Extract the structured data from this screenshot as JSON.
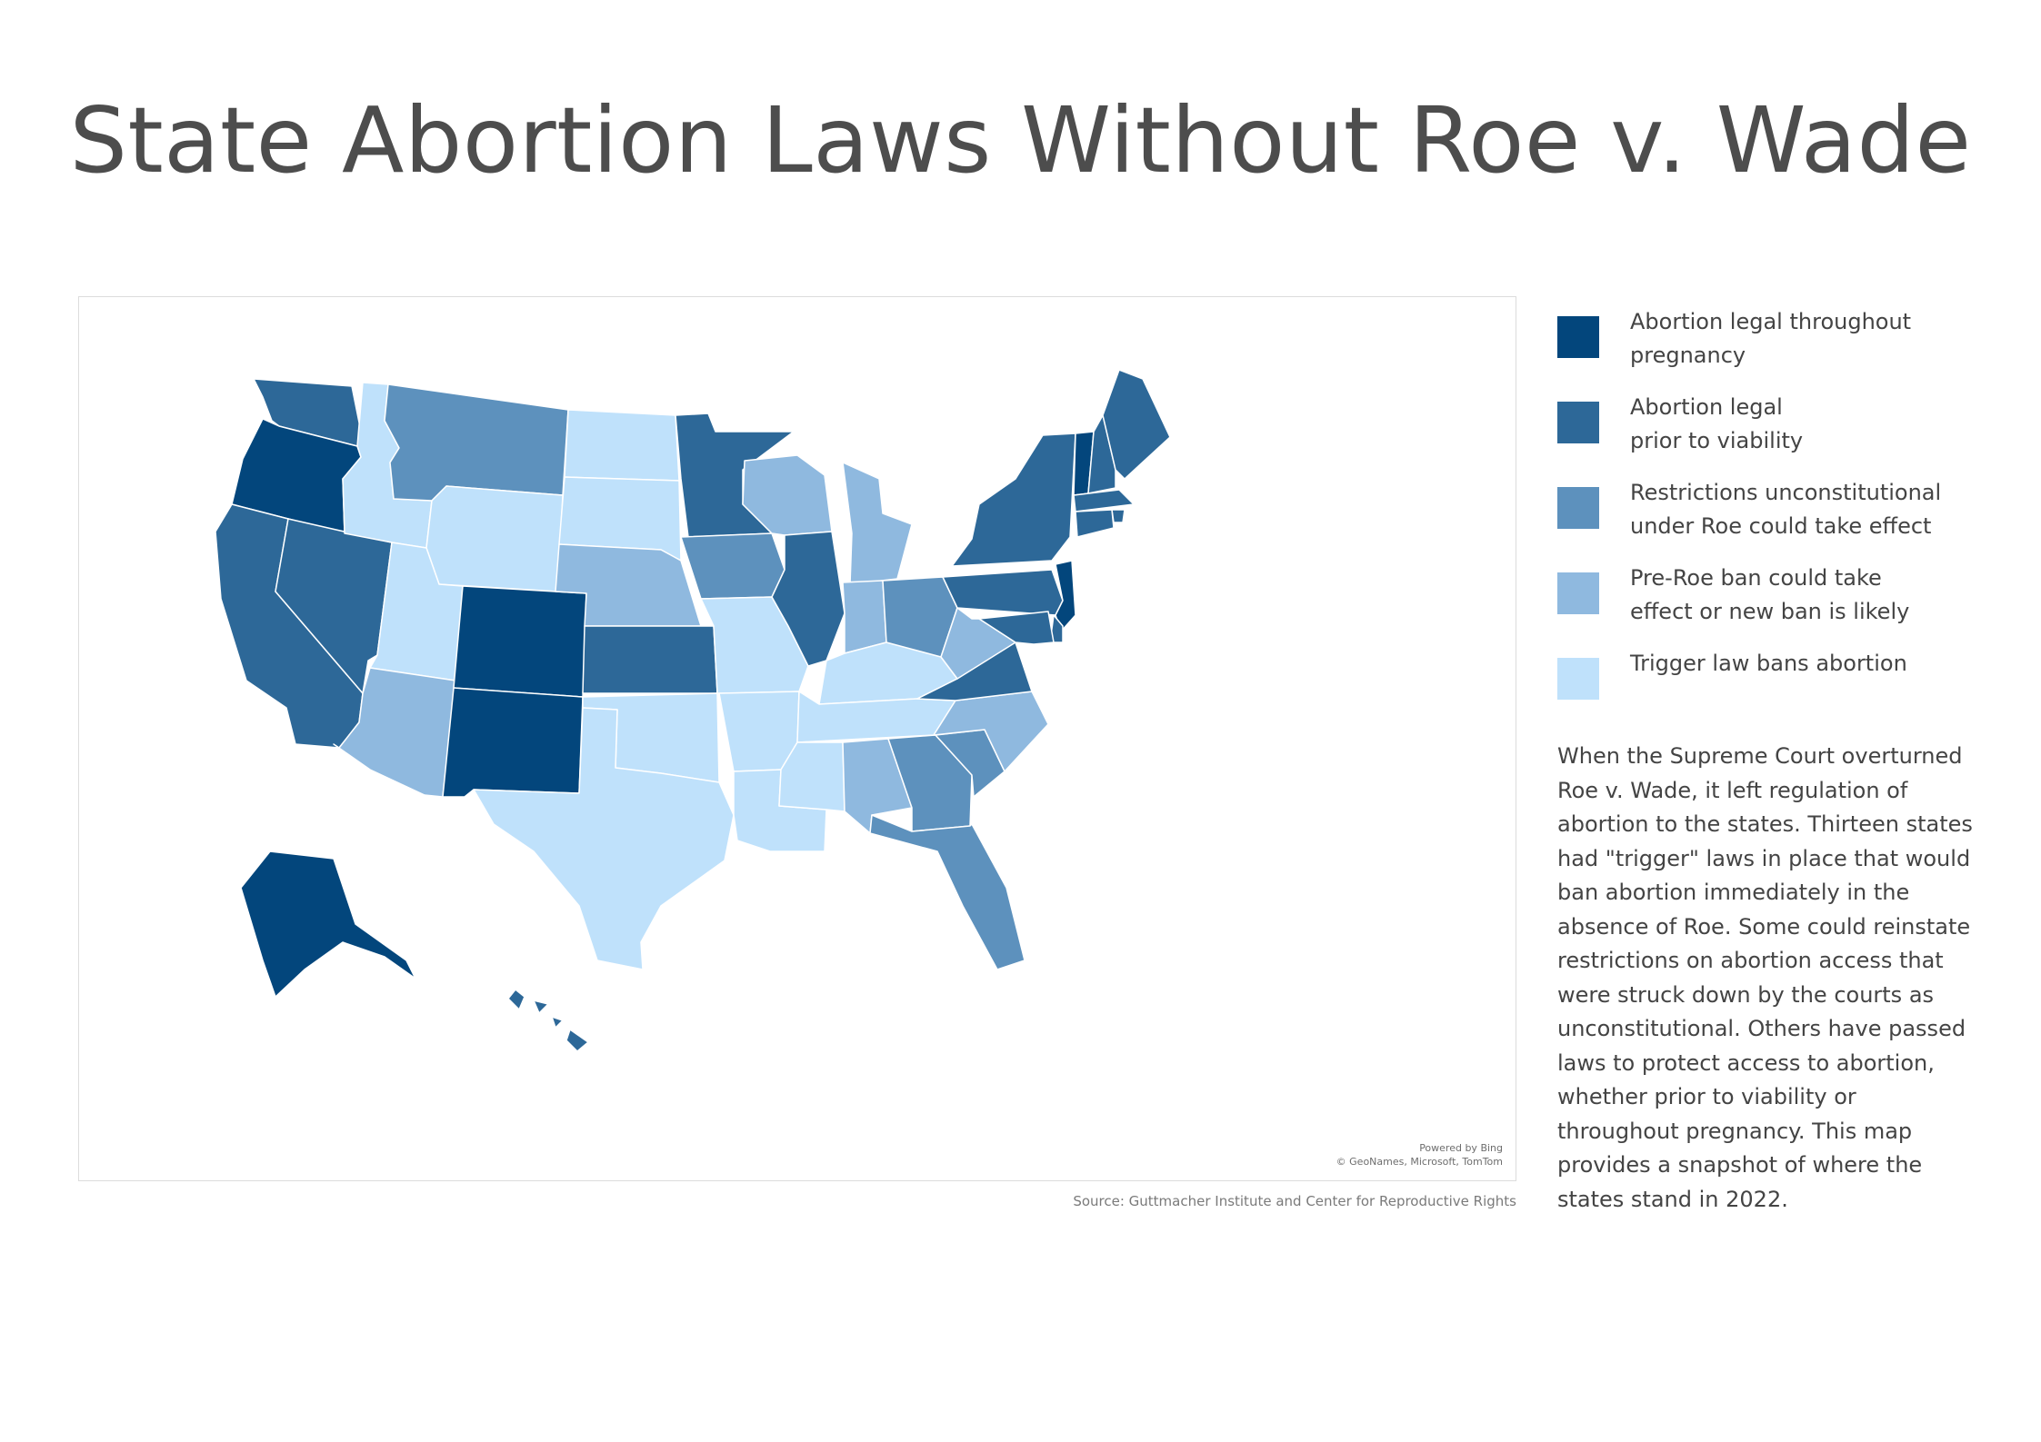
{
  "title": "State Abortion Laws Without Roe v. Wade",
  "legend": [
    {
      "lines": [
        "Abortion legal throughout",
        "pregnancy"
      ],
      "color": "#03467c"
    },
    {
      "lines": [
        "Abortion legal",
        "prior to viability"
      ],
      "color": "#2d6898"
    },
    {
      "lines": [
        "Restrictions unconstitutional",
        "under Roe could take effect"
      ],
      "color": "#5d91bd"
    },
    {
      "lines": [
        "Pre-Roe ban could take",
        "effect or new ban is likely"
      ],
      "color": "#8fb9df"
    },
    {
      "lines": [
        "Trigger law bans abortion"
      ],
      "color": "#bfe1fb"
    }
  ],
  "description_lines": [
    "When the Supreme Court overturned",
    "Roe v. Wade, it left regulation of",
    "abortion to the states. Thirteen states",
    "had \"trigger\" laws in place that would",
    "ban abortion immediately in the",
    "absence of Roe. Some could reinstate",
    "restrictions on abortion access that",
    "were struck down by the courts as",
    "unconstitutional. Others have passed",
    "laws to protect access to abortion,",
    "whether prior to viability or",
    "throughout pregnancy. This map",
    "provides a snapshot of where the",
    "states stand in 2022."
  ],
  "attribution": {
    "line1": "Powered by Bing",
    "line2": "© GeoNames, Microsoft, TomTom"
  },
  "source": "Source: Guttmacher Institute and Center for Reproductive Rights",
  "colors": {
    "legal_throughout": "#03467c",
    "legal_pre_viability": "#2d6898",
    "restrictions": "#5d91bd",
    "pre_roe_ban": "#8fb9df",
    "trigger_ban": "#bfe1fb"
  },
  "states": [
    {
      "code": "WA",
      "category": "legal_pre_viability"
    },
    {
      "code": "OR",
      "category": "legal_throughout"
    },
    {
      "code": "CA",
      "category": "legal_pre_viability"
    },
    {
      "code": "NV",
      "category": "legal_pre_viability"
    },
    {
      "code": "ID",
      "category": "trigger_ban"
    },
    {
      "code": "MT",
      "category": "restrictions"
    },
    {
      "code": "WY",
      "category": "trigger_ban"
    },
    {
      "code": "UT",
      "category": "trigger_ban"
    },
    {
      "code": "AZ",
      "category": "pre_roe_ban"
    },
    {
      "code": "CO",
      "category": "legal_throughout"
    },
    {
      "code": "NM",
      "category": "legal_throughout"
    },
    {
      "code": "ND",
      "category": "trigger_ban"
    },
    {
      "code": "SD",
      "category": "trigger_ban"
    },
    {
      "code": "NE",
      "category": "pre_roe_ban"
    },
    {
      "code": "KS",
      "category": "legal_pre_viability"
    },
    {
      "code": "OK",
      "category": "trigger_ban"
    },
    {
      "code": "TX",
      "category": "trigger_ban"
    },
    {
      "code": "MN",
      "category": "legal_pre_viability"
    },
    {
      "code": "IA",
      "category": "restrictions"
    },
    {
      "code": "MO",
      "category": "trigger_ban"
    },
    {
      "code": "AR",
      "category": "trigger_ban"
    },
    {
      "code": "LA",
      "category": "trigger_ban"
    },
    {
      "code": "WI",
      "category": "pre_roe_ban"
    },
    {
      "code": "IL",
      "category": "legal_pre_viability"
    },
    {
      "code": "MI",
      "category": "pre_roe_ban"
    },
    {
      "code": "IN",
      "category": "pre_roe_ban"
    },
    {
      "code": "OH",
      "category": "restrictions"
    },
    {
      "code": "KY",
      "category": "trigger_ban"
    },
    {
      "code": "TN",
      "category": "trigger_ban"
    },
    {
      "code": "MS",
      "category": "trigger_ban"
    },
    {
      "code": "AL",
      "category": "pre_roe_ban"
    },
    {
      "code": "GA",
      "category": "restrictions"
    },
    {
      "code": "FL",
      "category": "restrictions"
    },
    {
      "code": "SC",
      "category": "restrictions"
    },
    {
      "code": "NC",
      "category": "pre_roe_ban"
    },
    {
      "code": "VA",
      "category": "legal_pre_viability"
    },
    {
      "code": "WV",
      "category": "pre_roe_ban"
    },
    {
      "code": "PA",
      "category": "legal_pre_viability"
    },
    {
      "code": "NY",
      "category": "legal_pre_viability"
    },
    {
      "code": "VT",
      "category": "legal_throughout"
    },
    {
      "code": "NH",
      "category": "legal_pre_viability"
    },
    {
      "code": "ME",
      "category": "legal_pre_viability"
    },
    {
      "code": "MA",
      "category": "legal_pre_viability"
    },
    {
      "code": "RI",
      "category": "legal_pre_viability"
    },
    {
      "code": "CT",
      "category": "legal_pre_viability"
    },
    {
      "code": "NJ",
      "category": "legal_throughout"
    },
    {
      "code": "DE",
      "category": "legal_pre_viability"
    },
    {
      "code": "MD",
      "category": "legal_pre_viability"
    },
    {
      "code": "AK",
      "category": "legal_throughout"
    },
    {
      "code": "HI",
      "category": "legal_pre_viability"
    }
  ]
}
